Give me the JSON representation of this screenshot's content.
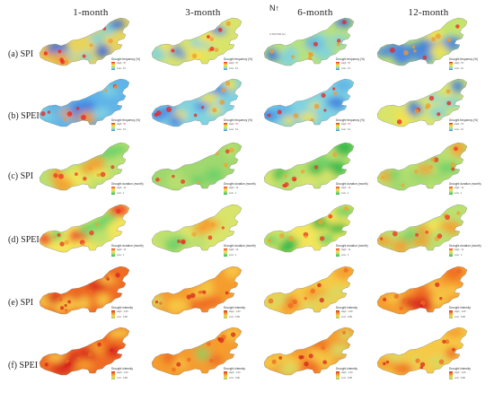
{
  "columns": [
    "1-month",
    "3-month",
    "6-month",
    "12-month"
  ],
  "rows": [
    {
      "label": "(a) SPI",
      "legend_title": "Drought frequency (%)",
      "high": "High : 57",
      "low": "Low : 13",
      "palette": "frequency"
    },
    {
      "label": "(b) SPEI",
      "legend_title": "Drought frequency (%)",
      "high": "High : 57",
      "low": "Low : 13",
      "palette": "frequency"
    },
    {
      "label": "(c) SPI",
      "legend_title": "Drought duration (month)",
      "high": "High : 11",
      "low": "Low : 1",
      "palette": "duration"
    },
    {
      "label": "(d) SPEI",
      "legend_title": "Drought duration (month)",
      "high": "High : 11",
      "low": "Low : 1",
      "palette": "duration"
    },
    {
      "label": "(e) SPI",
      "legend_title": "Drought intensity",
      "high": "High : 1.60",
      "low": "Low : 0.80",
      "palette": "intensity"
    },
    {
      "label": "(f) SPEI",
      "legend_title": "Drought intensity",
      "high": "High : 1.60",
      "low": "Low : 0.80",
      "palette": "intensity"
    }
  ],
  "north_arrow": "N",
  "scale_text": "0  250  500 km",
  "colors": {
    "frequency": [
      "#ee2222",
      "#f39a2a",
      "#f5e24a",
      "#b8e27a",
      "#7fd3e0",
      "#3f7fe0"
    ],
    "duration": [
      "#ee3322",
      "#f5a030",
      "#f2e55a",
      "#b9e070",
      "#6fd16a",
      "#2fb84a"
    ],
    "intensity": [
      "#d7261e",
      "#ef6b22",
      "#f59c2f",
      "#f6c945",
      "#d8d962",
      "#98c95c"
    ]
  },
  "cell_tones": [
    [
      [
        "#e8d45a",
        "#f0a236",
        "#3b6fe0",
        "#7fd3e0"
      ],
      [
        "#d8e46a",
        "#f5e24a",
        "#7fd3e0",
        "#3f7fe0"
      ],
      [
        "#b8e27a",
        "#5fb4e8",
        "#3b6fe0",
        "#7fd3e0"
      ],
      [
        "#c4e46e",
        "#f5e24a",
        "#4a86e4",
        "#3f7fe0"
      ]
    ],
    [
      [
        "#5fb4e8",
        "#3f7fe0",
        "#f39a2a",
        "#7fd3e0"
      ],
      [
        "#7fd3e0",
        "#3f7fe0",
        "#f5e24a",
        "#4a86e4"
      ],
      [
        "#7fd3e0",
        "#5fb4e8",
        "#f5e24a",
        "#3f7fe0"
      ],
      [
        "#d8e46a",
        "#f5e24a",
        "#7fd3e0",
        "#3f7fe0"
      ]
    ],
    [
      [
        "#b9e070",
        "#f2e55a",
        "#f5a030",
        "#6fd16a"
      ],
      [
        "#9fd86e",
        "#b9e070",
        "#f2e55a",
        "#6fd16a"
      ],
      [
        "#b9e070",
        "#d9e46a",
        "#6fd16a",
        "#2fb84a"
      ],
      [
        "#b9e070",
        "#f5a030",
        "#6fd16a",
        "#9fd86e"
      ]
    ],
    [
      [
        "#f2e55a",
        "#ee3322",
        "#b9e070",
        "#6fd16a"
      ],
      [
        "#d9e46a",
        "#f5a030",
        "#b9e070",
        "#6fd16a"
      ],
      [
        "#f2e55a",
        "#b9e070",
        "#6fd16a",
        "#2fb84a"
      ],
      [
        "#b9e070",
        "#f2e55a",
        "#f5a030",
        "#6fd16a"
      ]
    ],
    [
      [
        "#ef6b22",
        "#d7261e",
        "#f59c2f",
        "#f6c945"
      ],
      [
        "#f59c2f",
        "#ef6b22",
        "#f6c945",
        "#d8d962"
      ],
      [
        "#f6c945",
        "#f59c2f",
        "#ef6b22",
        "#d8d962"
      ],
      [
        "#f59c2f",
        "#d7261e",
        "#f6c945",
        "#ef6b22"
      ]
    ],
    [
      [
        "#ef6b22",
        "#d7261e",
        "#f59c2f",
        "#f6c945"
      ],
      [
        "#f59c2f",
        "#f6c945",
        "#ef6b22",
        "#98c95c"
      ],
      [
        "#f59c2f",
        "#f6c945",
        "#ef6b22",
        "#d8d962"
      ],
      [
        "#f6c945",
        "#f59c2f",
        "#ef6b22",
        "#d8d962"
      ]
    ]
  ]
}
